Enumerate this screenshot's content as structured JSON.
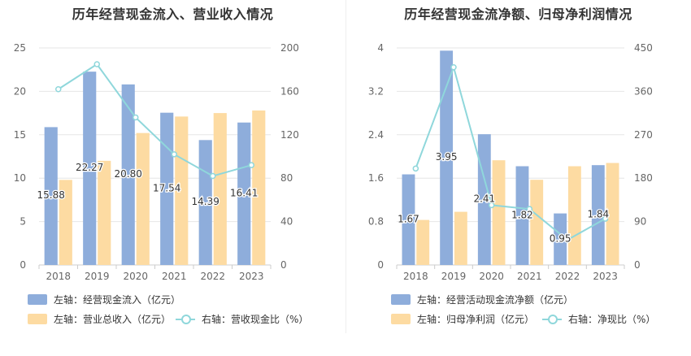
{
  "chart_data": [
    {
      "type": "bar",
      "title": "历年经营现金流入、营业收入情况",
      "categories": [
        "2018",
        "2019",
        "2020",
        "2021",
        "2022",
        "2023"
      ],
      "left_axis": {
        "ylim": [
          0,
          25
        ],
        "ticks": [
          "0",
          "5",
          "10",
          "15",
          "20",
          "25"
        ]
      },
      "right_axis": {
        "ylim": [
          0,
          200
        ],
        "ticks": [
          "0",
          "40",
          "80",
          "120",
          "160",
          "200"
        ]
      },
      "series": [
        {
          "name": "左轴：经营现金流入（亿元）",
          "axis": "left",
          "kind": "bar",
          "color": "#8eaddb",
          "values": [
            15.88,
            22.27,
            20.8,
            17.54,
            14.39,
            16.41
          ],
          "labels": [
            "15.88",
            "22.27",
            "20.80",
            "17.54",
            "14.39",
            "16.41"
          ]
        },
        {
          "name": "左轴：营业总收入（亿元）",
          "axis": "left",
          "kind": "bar",
          "color": "#fddba2",
          "values": [
            9.8,
            12.0,
            15.2,
            17.1,
            17.5,
            17.8
          ]
        },
        {
          "name": "右轴：营收现金比（%）",
          "axis": "right",
          "kind": "line",
          "color": "#8fd7db",
          "values": [
            162,
            185,
            136,
            102,
            82,
            92
          ]
        }
      ],
      "grid": true,
      "legend": "bottom"
    },
    {
      "type": "bar",
      "title": "历年经营现金流净额、归母净利润情况",
      "categories": [
        "2018",
        "2019",
        "2020",
        "2021",
        "2022",
        "2023"
      ],
      "left_axis": {
        "ylim": [
          0,
          4
        ],
        "ticks": [
          "0",
          "0.8",
          "1.6",
          "2.4",
          "3.2",
          "4"
        ]
      },
      "right_axis": {
        "ylim": [
          0,
          450
        ],
        "ticks": [
          "0",
          "90",
          "180",
          "270",
          "360",
          "450"
        ]
      },
      "series": [
        {
          "name": "左轴：经营活动现金流净额（亿元）",
          "axis": "left",
          "kind": "bar",
          "color": "#8eaddb",
          "values": [
            1.67,
            3.95,
            2.41,
            1.82,
            0.95,
            1.84
          ],
          "labels": [
            "1.67",
            "3.95",
            "2.41",
            "1.82",
            "0.95",
            "1.84"
          ]
        },
        {
          "name": "左轴：归母净利润（亿元）",
          "axis": "left",
          "kind": "bar",
          "color": "#fddba2",
          "values": [
            0.83,
            0.98,
            1.93,
            1.57,
            1.82,
            1.88
          ]
        },
        {
          "name": "右轴：净现比（%）",
          "axis": "right",
          "kind": "line",
          "color": "#8fd7db",
          "values": [
            200,
            410,
            124,
            116,
            52,
            96
          ]
        }
      ],
      "grid": true,
      "legend": "bottom"
    }
  ]
}
